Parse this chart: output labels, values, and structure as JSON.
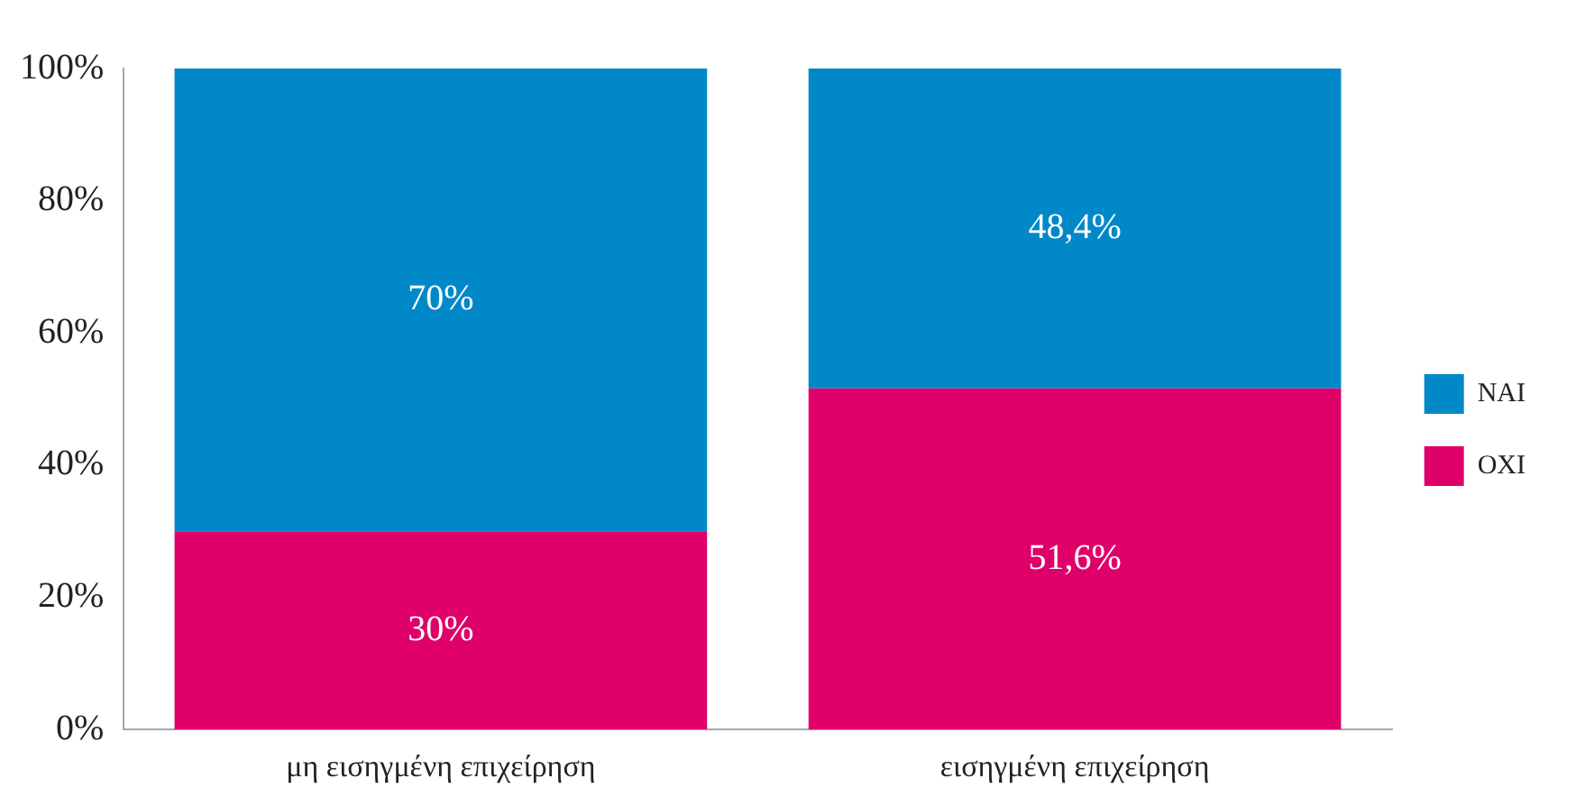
{
  "chart_data": {
    "type": "bar",
    "stacked": true,
    "categories": [
      "μη εισηγμένη επιχείρηση",
      "εισηγμένη επιχείρηση"
    ],
    "series": [
      {
        "name": "ΟΧΙ",
        "color": "#e0006a",
        "values": [
          30,
          51.6
        ],
        "value_labels": [
          "30%",
          "51,6%"
        ]
      },
      {
        "name": "ΝΑΙ",
        "color": "#0088c8",
        "values": [
          70,
          48.4
        ],
        "value_labels": [
          "70%",
          "48,4%"
        ]
      }
    ],
    "ylim": [
      0,
      100
    ],
    "yticks": [
      {
        "value": 0,
        "label": "0%"
      },
      {
        "value": 20,
        "label": "20%"
      },
      {
        "value": 40,
        "label": "40%"
      },
      {
        "value": 60,
        "label": "60%"
      },
      {
        "value": 80,
        "label": "80%"
      },
      {
        "value": 100,
        "label": "100%"
      }
    ],
    "grid": false,
    "legend": "right"
  }
}
